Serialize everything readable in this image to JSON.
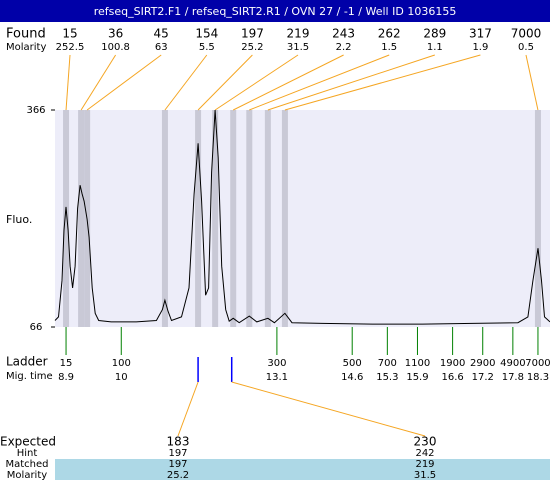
{
  "title": "refseq_SIRT2.F1 / refseq_SIRT2.R1 / OVN 27 / -1 / Well ID 1036155",
  "found": {
    "label": "Found",
    "molarity_label": "Molarity",
    "sizes": [
      15,
      36,
      45,
      154,
      197,
      219,
      243,
      262,
      289,
      317,
      7000
    ],
    "molarity": [
      252.5,
      100.8,
      63,
      5.5,
      25.2,
      31.5,
      2.2,
      1.5,
      1.1,
      1.9,
      0.5
    ],
    "times": [
      8.9,
      9.2,
      9.32,
      10.87,
      11.53,
      11.87,
      12.23,
      12.55,
      12.92,
      13.26,
      18.3
    ]
  },
  "chart_data": {
    "type": "line",
    "ylabel": "Fluo.",
    "ylim": [
      66,
      366
    ],
    "yticks": [
      66,
      366
    ],
    "xlim": [
      8.68,
      18.54
    ],
    "color": "#000000",
    "x": [
      8.68,
      8.75,
      8.82,
      8.86,
      8.9,
      8.94,
      8.98,
      9.03,
      9.08,
      9.13,
      9.18,
      9.22,
      9.26,
      9.32,
      9.36,
      9.42,
      9.48,
      9.55,
      9.8,
      10.3,
      10.7,
      10.82,
      10.87,
      10.93,
      11.0,
      11.2,
      11.35,
      11.45,
      11.53,
      11.6,
      11.68,
      11.74,
      11.8,
      11.87,
      11.93,
      12.0,
      12.08,
      12.15,
      12.23,
      12.35,
      12.55,
      12.7,
      12.92,
      13.05,
      13.26,
      13.4,
      14,
      15,
      16,
      17,
      17.9,
      18.1,
      18.2,
      18.3,
      18.37,
      18.43,
      18.54
    ],
    "values": [
      75,
      80,
      130,
      200,
      232,
      200,
      150,
      120,
      150,
      230,
      262,
      250,
      240,
      215,
      190,
      120,
      85,
      75,
      73,
      73,
      75,
      90,
      103,
      88,
      75,
      80,
      120,
      250,
      320,
      240,
      110,
      120,
      280,
      366,
      300,
      150,
      90,
      74,
      78,
      72,
      81,
      73,
      78,
      72,
      85,
      72,
      71,
      70,
      70,
      71,
      72,
      80,
      130,
      175,
      130,
      80,
      73
    ]
  },
  "ladder": {
    "label": "Ladder",
    "time_label": "Mig. time",
    "color": "#008000",
    "sizes": [
      15,
      100,
      300,
      500,
      700,
      1100,
      1900,
      2900,
      4900,
      7000
    ],
    "times": [
      8.9,
      10,
      13.1,
      14.6,
      15.3,
      15.9,
      16.6,
      17.2,
      17.8,
      18.3
    ]
  },
  "expected": {
    "label": "Expected",
    "hint_label": "Hint",
    "matched_label": "Matched",
    "molarity_label": "Molarity",
    "sizes": [
      183,
      230
    ],
    "times": [
      11.53,
      12.2
    ],
    "hint": [
      197,
      242
    ],
    "matched": [
      197,
      219
    ],
    "molarity": [
      25.2,
      31.5
    ]
  }
}
